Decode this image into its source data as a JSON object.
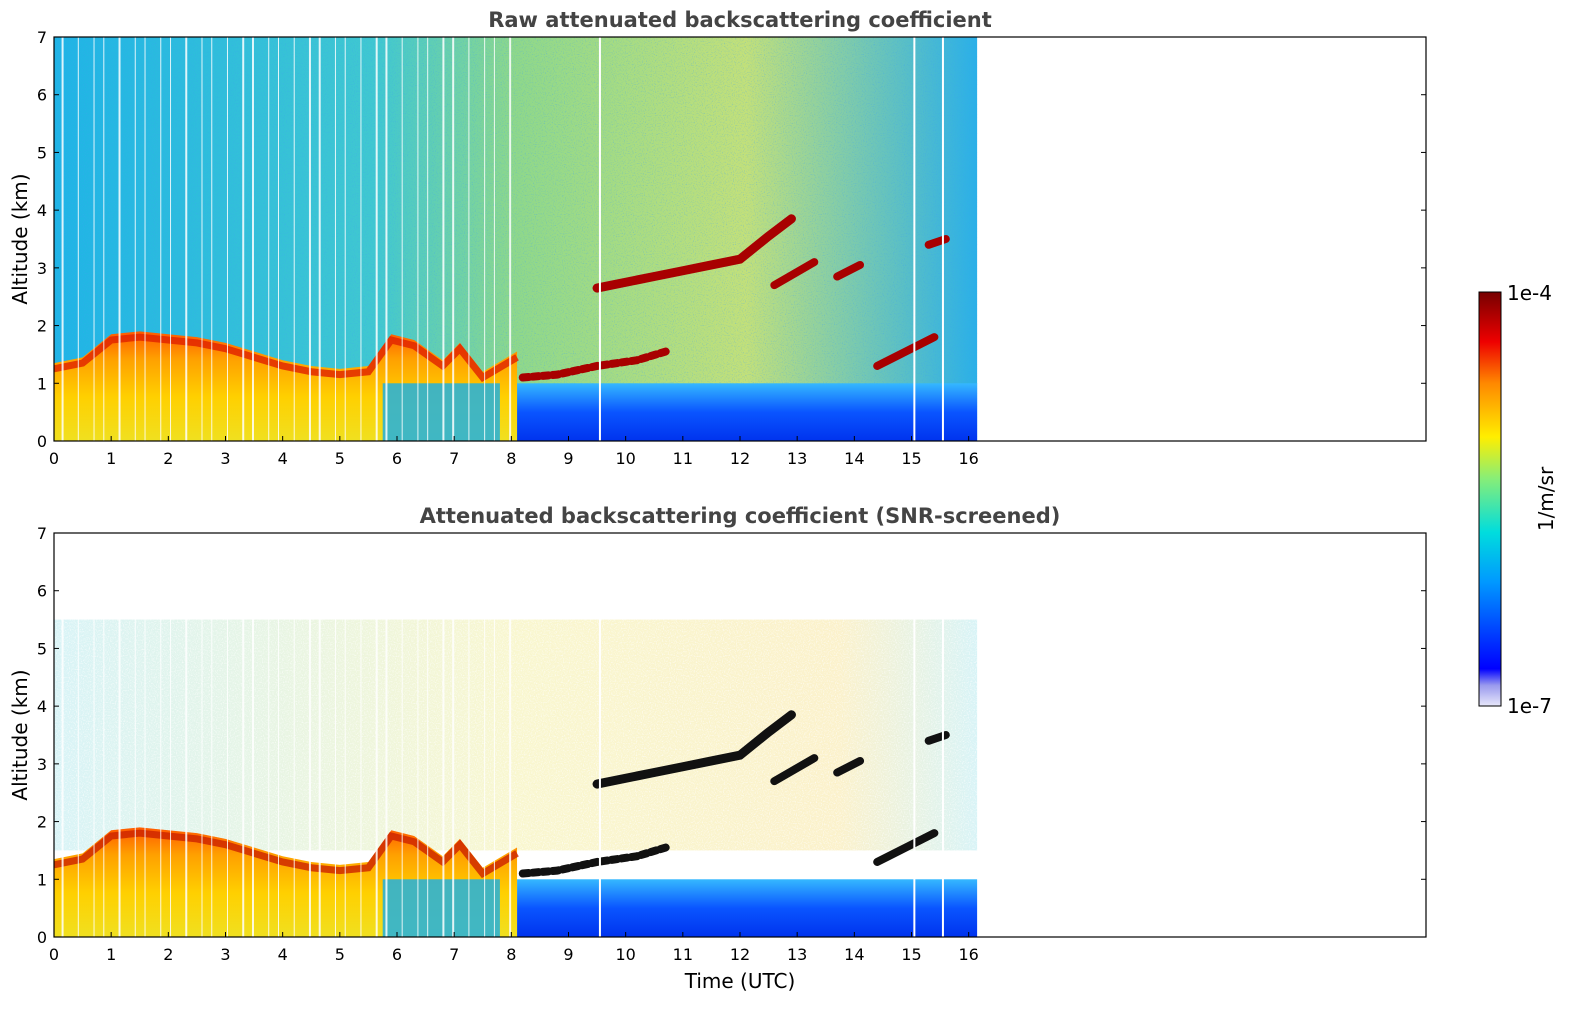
{
  "chart_data": [
    {
      "type": "heatmap",
      "title": "Raw attenuated backscattering coefficient",
      "ylabel": "Altitude (km)",
      "xlabel": "",
      "xlim": [
        0,
        24
      ],
      "ylim": [
        0,
        7
      ],
      "x_ticks": [
        "0",
        "1",
        "2",
        "3",
        "4",
        "5",
        "6",
        "7",
        "8",
        "9",
        "10",
        "11",
        "12",
        "13",
        "14",
        "15",
        "16"
      ],
      "y_ticks": [
        "0",
        "1",
        "2",
        "3",
        "4",
        "5",
        "6",
        "7"
      ],
      "data_extent_x": [
        0,
        16.15
      ],
      "screened": false,
      "features": {
        "boundary_layer_top_km": [
          [
            0,
            1.25
          ],
          [
            0.5,
            1.35
          ],
          [
            1,
            1.75
          ],
          [
            1.5,
            1.8
          ],
          [
            2,
            1.75
          ],
          [
            2.5,
            1.7
          ],
          [
            3,
            1.6
          ],
          [
            3.5,
            1.45
          ],
          [
            4,
            1.3
          ],
          [
            4.5,
            1.2
          ],
          [
            5,
            1.15
          ],
          [
            5.5,
            1.2
          ],
          [
            5.9,
            1.75
          ],
          [
            6.3,
            1.65
          ],
          [
            6.8,
            1.3
          ],
          [
            7.1,
            1.6
          ],
          [
            7.5,
            1.1
          ],
          [
            8.1,
            1.45
          ]
        ],
        "lower_cloud_km": [
          [
            8.2,
            1.1
          ],
          [
            8.8,
            1.15
          ],
          [
            9.5,
            1.3
          ],
          [
            10.2,
            1.4
          ],
          [
            10.7,
            1.55
          ]
        ],
        "upper_cloud_km": [
          [
            9.5,
            2.65
          ],
          [
            10.5,
            2.85
          ],
          [
            11,
            2.95
          ],
          [
            11.5,
            3.05
          ],
          [
            12,
            3.15
          ],
          [
            12.5,
            3.55
          ],
          [
            12.9,
            3.85
          ]
        ],
        "cloud_patches": [
          {
            "t": [
              12.6,
              13.3
            ],
            "z": [
              2.7,
              3.1
            ]
          },
          {
            "t": [
              13.7,
              14.1
            ],
            "z": [
              2.85,
              3.05
            ]
          },
          {
            "t": [
              15.3,
              15.6
            ],
            "z": [
              3.4,
              3.5
            ]
          },
          {
            "t": [
              14.4,
              15.4
            ],
            "z": [
              1.3,
              1.8
            ]
          }
        ]
      }
    },
    {
      "type": "heatmap",
      "title": "Attenuated backscattering coefficient (SNR-screened)",
      "ylabel": "Altitude (km)",
      "xlabel": "Time (UTC)",
      "xlim": [
        0,
        24
      ],
      "ylim": [
        0,
        7
      ],
      "x_ticks": [
        "0",
        "1",
        "2",
        "3",
        "4",
        "5",
        "6",
        "7",
        "8",
        "9",
        "10",
        "11",
        "12",
        "13",
        "14",
        "15",
        "16"
      ],
      "y_ticks": [
        "0",
        "1",
        "2",
        "3",
        "4",
        "5",
        "6",
        "7"
      ],
      "data_extent_x": [
        0,
        16.15
      ],
      "screened": true
    }
  ],
  "colorbar": {
    "label": "1/m/sr",
    "max_label": "1e-4",
    "min_label": "1e-7",
    "scale": "log",
    "range": [
      1e-07,
      0.0001
    ],
    "colors": [
      "#e8e8fa",
      "#c8c8f5",
      "#9999ee",
      "#6666ee",
      "#0000ff",
      "#0044ff",
      "#0088ff",
      "#00bbff",
      "#00dddd",
      "#33eebb",
      "#88ee77",
      "#ccee33",
      "#ffee00",
      "#ffbb00",
      "#ff8800",
      "#ff4400",
      "#ee0000",
      "#aa0000",
      "#770000"
    ]
  }
}
